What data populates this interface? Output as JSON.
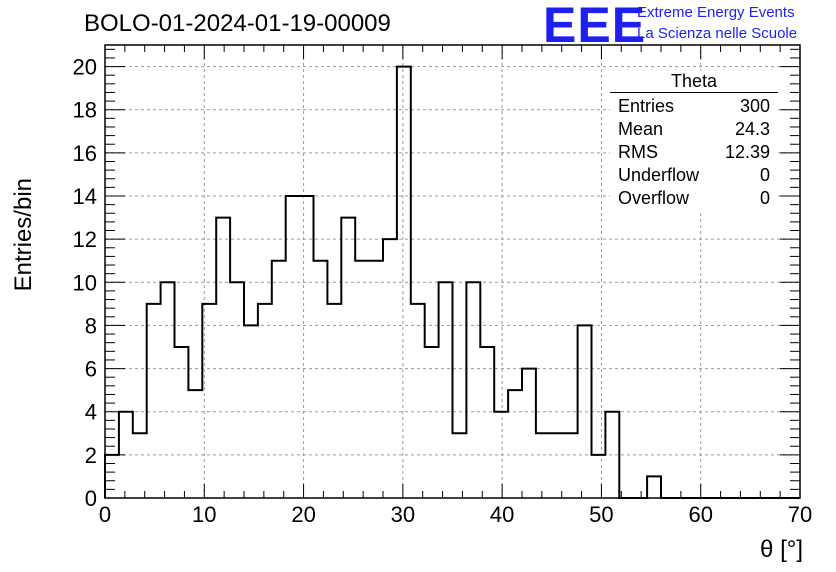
{
  "title": "BOLO-01-2024-01-19-00009",
  "logo": {
    "mark": "EEE",
    "line1": "Extreme Energy Events",
    "line2": "La Scienza nelle Scuole",
    "color": "#1f1ff0"
  },
  "stats": {
    "name": "Theta",
    "rows": [
      {
        "label": "Entries",
        "value": "300"
      },
      {
        "label": "Mean",
        "value": "24.3"
      },
      {
        "label": "RMS",
        "value": "12.39"
      },
      {
        "label": "Underflow",
        "value": "0"
      },
      {
        "label": "Overflow",
        "value": "0"
      }
    ]
  },
  "chart_data": {
    "type": "bar",
    "style": "step-histogram",
    "xlabel": "θ [°]",
    "ylabel": "Entries/bin",
    "xlim": [
      0,
      70
    ],
    "ylim": [
      0,
      21
    ],
    "grid": true,
    "bin_width": 1.4,
    "x_ticks": [
      0,
      10,
      20,
      30,
      40,
      50,
      60,
      70
    ],
    "y_ticks": [
      0,
      2,
      4,
      6,
      8,
      10,
      12,
      14,
      16,
      18,
      20
    ],
    "values": [
      2,
      4,
      3,
      9,
      10,
      7,
      5,
      9,
      13,
      10,
      8,
      9,
      11,
      14,
      14,
      11,
      9,
      13,
      11,
      11,
      12,
      20,
      9,
      7,
      10,
      3,
      10,
      7,
      4,
      5,
      6,
      3,
      3,
      3,
      8,
      2,
      4,
      0,
      0,
      1,
      0,
      0,
      0,
      0,
      0,
      0,
      0,
      0,
      0,
      0
    ],
    "line_color": "#000000"
  }
}
